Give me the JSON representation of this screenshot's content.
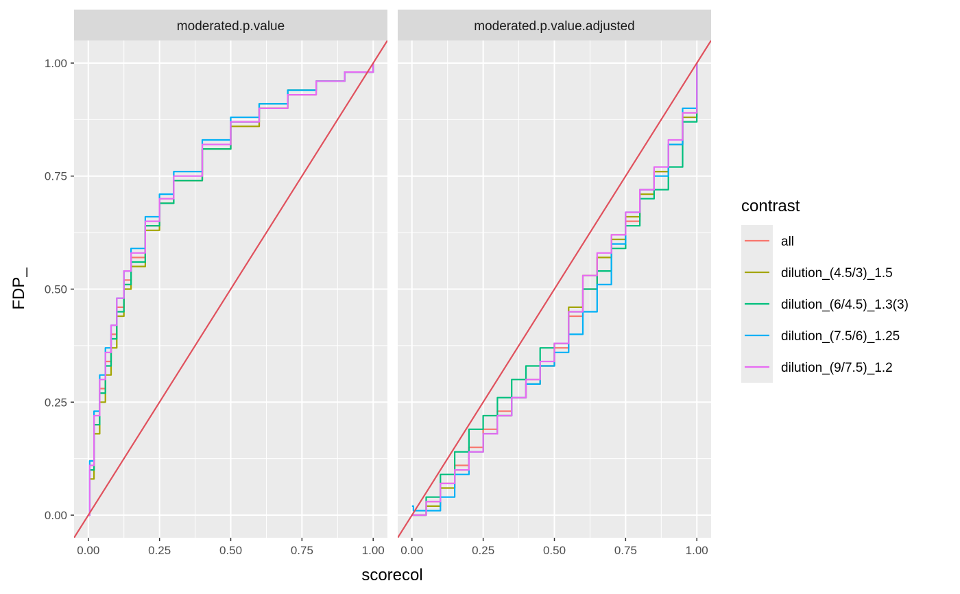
{
  "chart_data": {
    "type": "line",
    "xlabel": "scorecol",
    "ylabel": "FDP_",
    "xlim": [
      -0.05,
      1.05
    ],
    "ylim": [
      -0.05,
      1.05
    ],
    "x_ticks": [
      "0.00",
      "0.25",
      "0.50",
      "0.75",
      "1.00"
    ],
    "y_ticks": [
      "0.00",
      "0.25",
      "0.50",
      "0.75",
      "1.00"
    ],
    "grid": true,
    "legend": {
      "title": "contrast",
      "placement": "right",
      "entries": [
        {
          "label": "all",
          "color": "#F8766D"
        },
        {
          "label": "dilution_(4.5/3)_1.5",
          "color": "#A3A500"
        },
        {
          "label": "dilution_(6/4.5)_1.3(3)",
          "color": "#00BF7D"
        },
        {
          "label": "dilution_(7.5/6)_1.25",
          "color": "#00B0F6"
        },
        {
          "label": "dilution_(9/7.5)_1.2",
          "color": "#E76BF3"
        }
      ]
    },
    "reference_line": {
      "color": "#E0515D",
      "intercept": 0,
      "slope": 1
    },
    "panels": [
      {
        "title": "moderated.p.value",
        "series": [
          {
            "name": "all",
            "color": "#F8766D",
            "x": [
              0,
              0.005,
              0.02,
              0.04,
              0.06,
              0.08,
              0.1,
              0.125,
              0.15,
              0.2,
              0.25,
              0.3,
              0.4,
              0.5,
              0.6,
              0.7,
              0.8,
              0.9,
              1.0
            ],
            "y": [
              0,
              0.1,
              0.2,
              0.28,
              0.34,
              0.4,
              0.46,
              0.52,
              0.57,
              0.64,
              0.7,
              0.74,
              0.81,
              0.86,
              0.9,
              0.93,
              0.96,
              0.98,
              1.0
            ]
          },
          {
            "name": "dilution_(4.5/3)_1.5",
            "color": "#A3A500",
            "x": [
              0,
              0.005,
              0.02,
              0.04,
              0.06,
              0.08,
              0.1,
              0.125,
              0.15,
              0.2,
              0.25,
              0.3,
              0.4,
              0.5,
              0.6,
              0.7,
              0.8,
              0.9,
              1.0
            ],
            "y": [
              0,
              0.08,
              0.18,
              0.25,
              0.31,
              0.37,
              0.44,
              0.5,
              0.55,
              0.63,
              0.69,
              0.74,
              0.81,
              0.86,
              0.9,
              0.94,
              0.96,
              0.98,
              1.0
            ]
          },
          {
            "name": "dilution_(6/4.5)_1.3(3)",
            "color": "#00BF7D",
            "x": [
              0,
              0.005,
              0.02,
              0.04,
              0.06,
              0.08,
              0.1,
              0.125,
              0.15,
              0.2,
              0.25,
              0.3,
              0.4,
              0.5,
              0.6,
              0.7,
              0.8,
              0.9,
              1.0
            ],
            "y": [
              0,
              0.1,
              0.2,
              0.27,
              0.33,
              0.39,
              0.45,
              0.51,
              0.56,
              0.64,
              0.69,
              0.74,
              0.81,
              0.87,
              0.91,
              0.94,
              0.96,
              0.98,
              1.0
            ]
          },
          {
            "name": "dilution_(7.5/6)_1.25",
            "color": "#00B0F6",
            "x": [
              0,
              0.005,
              0.02,
              0.04,
              0.06,
              0.08,
              0.1,
              0.125,
              0.15,
              0.2,
              0.25,
              0.3,
              0.4,
              0.5,
              0.6,
              0.7,
              0.8,
              0.9,
              1.0
            ],
            "y": [
              0,
              0.12,
              0.23,
              0.31,
              0.37,
              0.42,
              0.48,
              0.54,
              0.59,
              0.66,
              0.71,
              0.76,
              0.83,
              0.88,
              0.91,
              0.94,
              0.96,
              0.98,
              1.0
            ]
          },
          {
            "name": "dilution_(9/7.5)_1.2",
            "color": "#E76BF3",
            "x": [
              0,
              0.005,
              0.02,
              0.04,
              0.06,
              0.08,
              0.1,
              0.125,
              0.15,
              0.2,
              0.25,
              0.3,
              0.4,
              0.5,
              0.6,
              0.7,
              0.8,
              0.9,
              1.0
            ],
            "y": [
              0,
              0.11,
              0.22,
              0.3,
              0.36,
              0.42,
              0.48,
              0.54,
              0.58,
              0.65,
              0.7,
              0.75,
              0.82,
              0.87,
              0.9,
              0.93,
              0.96,
              0.98,
              1.0
            ]
          }
        ]
      },
      {
        "title": "moderated.p.value.adjusted",
        "series": [
          {
            "name": "all",
            "color": "#F8766D",
            "x": [
              0,
              0.05,
              0.1,
              0.15,
              0.2,
              0.25,
              0.3,
              0.35,
              0.4,
              0.45,
              0.5,
              0.55,
              0.6,
              0.65,
              0.7,
              0.75,
              0.8,
              0.85,
              0.9,
              0.95,
              1.0
            ],
            "y": [
              0,
              0.03,
              0.07,
              0.11,
              0.15,
              0.19,
              0.23,
              0.26,
              0.3,
              0.33,
              0.37,
              0.44,
              0.5,
              0.57,
              0.62,
              0.65,
              0.72,
              0.76,
              0.82,
              0.89,
              1.0
            ]
          },
          {
            "name": "dilution_(4.5/3)_1.5",
            "color": "#A3A500",
            "x": [
              0,
              0.05,
              0.1,
              0.15,
              0.2,
              0.25,
              0.3,
              0.35,
              0.4,
              0.45,
              0.5,
              0.55,
              0.6,
              0.65,
              0.7,
              0.75,
              0.8,
              0.85,
              0.9,
              0.95,
              1.0
            ],
            "y": [
              0,
              0.02,
              0.06,
              0.1,
              0.14,
              0.18,
              0.22,
              0.26,
              0.29,
              0.33,
              0.38,
              0.46,
              0.53,
              0.57,
              0.61,
              0.66,
              0.71,
              0.76,
              0.82,
              0.88,
              1.0
            ]
          },
          {
            "name": "dilution_(6/4.5)_1.3(3)",
            "color": "#00BF7D",
            "x": [
              0,
              0.05,
              0.1,
              0.15,
              0.2,
              0.25,
              0.3,
              0.35,
              0.4,
              0.45,
              0.5,
              0.55,
              0.6,
              0.65,
              0.7,
              0.75,
              0.8,
              0.85,
              0.9,
              0.95,
              1.0
            ],
            "y": [
              0,
              0.04,
              0.09,
              0.14,
              0.19,
              0.22,
              0.26,
              0.3,
              0.33,
              0.37,
              0.38,
              0.45,
              0.5,
              0.54,
              0.59,
              0.64,
              0.7,
              0.72,
              0.77,
              0.87,
              1.0
            ]
          },
          {
            "name": "dilution_(7.5/6)_1.25",
            "color": "#00B0F6",
            "x": [
              0,
              0.005,
              0.05,
              0.1,
              0.15,
              0.2,
              0.25,
              0.3,
              0.35,
              0.4,
              0.45,
              0.5,
              0.55,
              0.6,
              0.65,
              0.7,
              0.75,
              0.8,
              0.85,
              0.9,
              0.95,
              1.0
            ],
            "y": [
              0.02,
              0.01,
              0.01,
              0.04,
              0.09,
              0.14,
              0.18,
              0.22,
              0.26,
              0.29,
              0.33,
              0.36,
              0.4,
              0.45,
              0.51,
              0.6,
              0.67,
              0.72,
              0.75,
              0.82,
              0.9,
              1.0
            ]
          },
          {
            "name": "dilution_(9/7.5)_1.2",
            "color": "#E76BF3",
            "x": [
              0,
              0.05,
              0.1,
              0.15,
              0.2,
              0.25,
              0.3,
              0.35,
              0.4,
              0.45,
              0.5,
              0.55,
              0.6,
              0.65,
              0.7,
              0.75,
              0.8,
              0.85,
              0.9,
              0.95,
              1.0
            ],
            "y": [
              0,
              0.03,
              0.07,
              0.1,
              0.14,
              0.18,
              0.22,
              0.26,
              0.3,
              0.34,
              0.38,
              0.45,
              0.53,
              0.58,
              0.62,
              0.67,
              0.72,
              0.77,
              0.83,
              0.89,
              1.0
            ]
          }
        ]
      }
    ]
  }
}
